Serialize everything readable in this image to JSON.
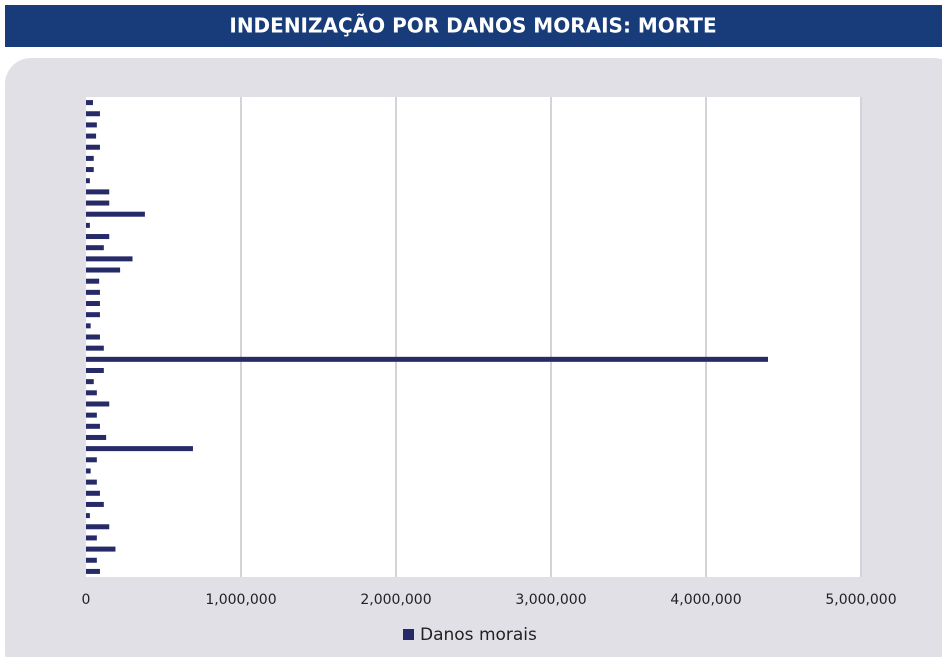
{
  "chart_data": {
    "type": "barh",
    "title": "INDENIZAÇÃO POR DANOS MORAIS: MORTE",
    "categories": [
      null,
      null,
      null,
      null,
      null,
      null,
      null,
      null,
      null,
      null,
      null,
      null,
      null,
      null,
      null,
      null,
      null,
      null,
      null,
      null,
      null,
      null,
      null,
      null,
      null,
      null,
      null,
      null,
      null,
      null,
      null,
      null,
      null,
      null,
      null,
      null,
      null,
      null,
      null,
      null,
      null,
      null,
      null
    ],
    "series": [
      {
        "name": "Danos morais",
        "color": "#262a66",
        "values": [
          45000,
          90000,
          70000,
          65000,
          90000,
          50000,
          50000,
          25000,
          150000,
          150000,
          380000,
          25000,
          150000,
          115000,
          300000,
          220000,
          85000,
          90000,
          90000,
          90000,
          30000,
          90000,
          115000,
          4400000,
          115000,
          50000,
          70000,
          150000,
          70000,
          90000,
          130000,
          690000,
          70000,
          30000,
          70000,
          90000,
          115000,
          25000,
          150000,
          70000,
          190000,
          70000,
          90000
        ]
      }
    ],
    "xlim": [
      0,
      5000000
    ],
    "xticks": [
      0,
      {
        "value": 1000000,
        "label": "1,000,000"
      },
      {
        "value": 2000000,
        "label": "2,000,000"
      },
      {
        "value": 3000000,
        "label": "3,000,000"
      },
      {
        "value": 4000000,
        "label": "4,000,000"
      },
      {
        "value": 5000000,
        "label": "5,000,000"
      }
    ],
    "grid": true
  }
}
